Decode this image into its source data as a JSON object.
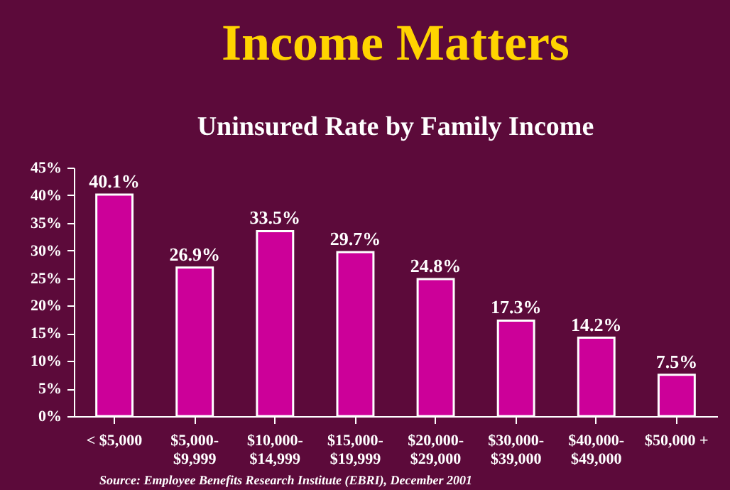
{
  "chart_data": {
    "type": "bar",
    "title": "Income Matters",
    "subtitle": "Uninsured Rate by Family Income",
    "categories": [
      "< $5,000",
      "$5,000-$9,999",
      "$10,000-$14,999",
      "$15,000-$19,999",
      "$20,000-$29,000",
      "$30,000-$39,000",
      "$40,000-$49,000",
      "$50,000 +"
    ],
    "values": [
      40.1,
      26.9,
      33.5,
      29.7,
      24.8,
      17.3,
      14.2,
      7.5
    ],
    "value_labels": [
      "40.1%",
      "26.9%",
      "33.5%",
      "29.7%",
      "24.8%",
      "17.3%",
      "14.2%",
      "7.5%"
    ],
    "color": "#cc0099",
    "ylim": [
      0,
      45
    ],
    "yticks": [
      {
        "value": 0,
        "label": "0%"
      },
      {
        "value": 5,
        "label": "5%"
      },
      {
        "value": 10,
        "label": "10%"
      },
      {
        "value": 15,
        "label": "15%"
      },
      {
        "value": 20,
        "label": "20%"
      },
      {
        "value": 25,
        "label": "25%"
      },
      {
        "value": 30,
        "label": "30%"
      },
      {
        "value": 35,
        "label": "35%"
      },
      {
        "value": 40,
        "label": "40%"
      },
      {
        "value": 45,
        "label": "45%"
      }
    ],
    "grid": false,
    "annotations": [
      "Source: Employee Benefits Research Institute (EBRI), December 2001"
    ]
  }
}
